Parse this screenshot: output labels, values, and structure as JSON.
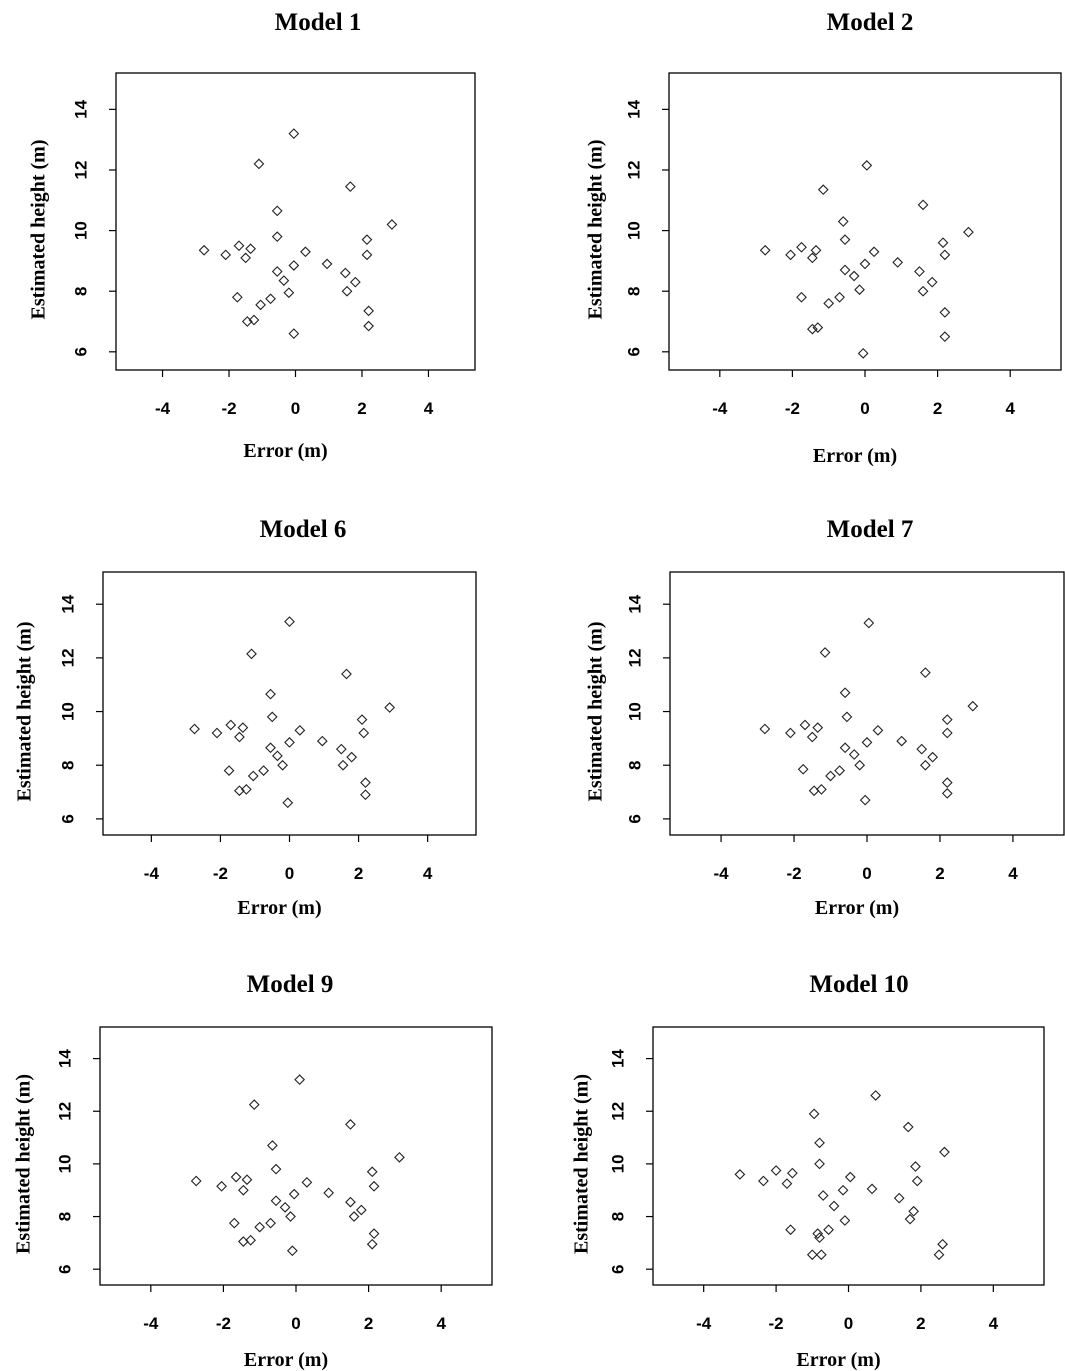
{
  "chart_data": [
    {
      "type": "scatter",
      "title": "Model 1",
      "xlabel": "Error (m)",
      "ylabel": "Estimated height (m)",
      "xlim": [
        -5.4,
        5.4
      ],
      "ylim": [
        5.4,
        15.2
      ],
      "xticks": [
        -4,
        -2,
        0,
        2,
        4
      ],
      "yticks": [
        6,
        8,
        10,
        12,
        14
      ],
      "grid": false,
      "marker": "diamond",
      "points": [
        [
          -0.05,
          13.2
        ],
        [
          -1.1,
          12.2
        ],
        [
          1.65,
          11.45
        ],
        [
          2.9,
          10.2
        ],
        [
          -0.55,
          10.65
        ],
        [
          -0.55,
          9.8
        ],
        [
          2.15,
          9.7
        ],
        [
          -2.75,
          9.35
        ],
        [
          -1.7,
          9.5
        ],
        [
          -1.35,
          9.4
        ],
        [
          -2.1,
          9.2
        ],
        [
          -1.5,
          9.1
        ],
        [
          0.3,
          9.3
        ],
        [
          2.15,
          9.2
        ],
        [
          -0.05,
          8.85
        ],
        [
          0.95,
          8.9
        ],
        [
          -0.55,
          8.65
        ],
        [
          -0.35,
          8.35
        ],
        [
          1.5,
          8.6
        ],
        [
          1.8,
          8.3
        ],
        [
          -0.2,
          7.95
        ],
        [
          1.55,
          8.0
        ],
        [
          -1.75,
          7.8
        ],
        [
          -0.75,
          7.75
        ],
        [
          -1.05,
          7.55
        ],
        [
          -1.45,
          7.0
        ],
        [
          -1.25,
          7.05
        ],
        [
          2.2,
          7.35
        ],
        [
          -0.05,
          6.6
        ],
        [
          2.2,
          6.85
        ]
      ]
    },
    {
      "type": "scatter",
      "title": "Model 2",
      "xlabel": "Error (m)",
      "ylabel": "Estimated height (m)",
      "xlim": [
        -5.4,
        5.4
      ],
      "ylim": [
        5.4,
        15.2
      ],
      "xticks": [
        -4,
        -2,
        0,
        2,
        4
      ],
      "yticks": [
        6,
        8,
        10,
        12,
        14
      ],
      "grid": false,
      "marker": "diamond",
      "points": [
        [
          0.05,
          12.15
        ],
        [
          -1.15,
          11.35
        ],
        [
          1.6,
          10.85
        ],
        [
          2.85,
          9.95
        ],
        [
          -0.6,
          10.3
        ],
        [
          -0.55,
          9.7
        ],
        [
          2.15,
          9.6
        ],
        [
          -2.75,
          9.35
        ],
        [
          -1.75,
          9.45
        ],
        [
          -1.35,
          9.35
        ],
        [
          -2.05,
          9.2
        ],
        [
          -1.45,
          9.1
        ],
        [
          0.25,
          9.3
        ],
        [
          2.2,
          9.2
        ],
        [
          0.0,
          8.9
        ],
        [
          0.9,
          8.95
        ],
        [
          -0.55,
          8.7
        ],
        [
          -0.3,
          8.5
        ],
        [
          1.5,
          8.65
        ],
        [
          1.85,
          8.3
        ],
        [
          -0.15,
          8.05
        ],
        [
          1.6,
          8.0
        ],
        [
          -1.75,
          7.8
        ],
        [
          -0.7,
          7.8
        ],
        [
          -1.0,
          7.6
        ],
        [
          -1.45,
          6.75
        ],
        [
          -1.3,
          6.8
        ],
        [
          2.2,
          7.3
        ],
        [
          2.2,
          6.5
        ],
        [
          -0.05,
          5.95
        ]
      ]
    },
    {
      "type": "scatter",
      "title": "Model 6",
      "xlabel": "Error (m)",
      "ylabel": "Estimated height (m)",
      "xlim": [
        -5.4,
        5.4
      ],
      "ylim": [
        5.4,
        15.2
      ],
      "xticks": [
        -4,
        -2,
        0,
        2,
        4
      ],
      "yticks": [
        6,
        8,
        10,
        12,
        14
      ],
      "grid": false,
      "marker": "diamond",
      "points": [
        [
          0.0,
          13.35
        ],
        [
          -1.1,
          12.15
        ],
        [
          1.65,
          11.4
        ],
        [
          2.9,
          10.15
        ],
        [
          -0.55,
          10.65
        ],
        [
          -0.5,
          9.8
        ],
        [
          2.1,
          9.7
        ],
        [
          -2.75,
          9.35
        ],
        [
          -1.7,
          9.5
        ],
        [
          -1.35,
          9.4
        ],
        [
          -2.1,
          9.2
        ],
        [
          -1.45,
          9.05
        ],
        [
          0.3,
          9.3
        ],
        [
          2.15,
          9.2
        ],
        [
          0.0,
          8.85
        ],
        [
          0.95,
          8.9
        ],
        [
          -0.55,
          8.65
        ],
        [
          -0.35,
          8.35
        ],
        [
          1.5,
          8.6
        ],
        [
          1.8,
          8.3
        ],
        [
          -0.2,
          8.0
        ],
        [
          1.55,
          8.0
        ],
        [
          -1.75,
          7.8
        ],
        [
          -0.75,
          7.8
        ],
        [
          -1.05,
          7.6
        ],
        [
          -1.45,
          7.05
        ],
        [
          -1.25,
          7.1
        ],
        [
          2.2,
          7.35
        ],
        [
          -0.05,
          6.6
        ],
        [
          2.2,
          6.9
        ]
      ]
    },
    {
      "type": "scatter",
      "title": "Model 7",
      "xlabel": "Error (m)",
      "ylabel": "Estimated height (m)",
      "xlim": [
        -5.4,
        5.4
      ],
      "ylim": [
        5.4,
        15.2
      ],
      "xticks": [
        -4,
        -2,
        0,
        2,
        4
      ],
      "yticks": [
        6,
        8,
        10,
        12,
        14
      ],
      "grid": false,
      "marker": "diamond",
      "points": [
        [
          0.05,
          13.3
        ],
        [
          -1.15,
          12.2
        ],
        [
          1.6,
          11.45
        ],
        [
          2.9,
          10.2
        ],
        [
          -0.6,
          10.7
        ],
        [
          -0.55,
          9.8
        ],
        [
          2.2,
          9.7
        ],
        [
          -2.8,
          9.35
        ],
        [
          -1.7,
          9.5
        ],
        [
          -1.35,
          9.4
        ],
        [
          -2.1,
          9.2
        ],
        [
          -1.5,
          9.05
        ],
        [
          0.3,
          9.3
        ],
        [
          2.2,
          9.2
        ],
        [
          0.0,
          8.85
        ],
        [
          0.95,
          8.9
        ],
        [
          -0.6,
          8.65
        ],
        [
          -0.35,
          8.4
        ],
        [
          1.5,
          8.6
        ],
        [
          1.8,
          8.3
        ],
        [
          -0.2,
          8.0
        ],
        [
          1.6,
          8.0
        ],
        [
          -1.75,
          7.85
        ],
        [
          -0.75,
          7.8
        ],
        [
          -1.0,
          7.6
        ],
        [
          -1.45,
          7.05
        ],
        [
          -1.25,
          7.1
        ],
        [
          2.2,
          7.35
        ],
        [
          -0.05,
          6.7
        ],
        [
          2.2,
          6.95
        ]
      ]
    },
    {
      "type": "scatter",
      "title": "Model 9",
      "xlabel": "Error (m)",
      "ylabel": "Estimated height (m)",
      "xlim": [
        -5.4,
        5.4
      ],
      "ylim": [
        5.4,
        15.2
      ],
      "xticks": [
        -4,
        -2,
        0,
        2,
        4
      ],
      "yticks": [
        6,
        8,
        10,
        12,
        14
      ],
      "grid": false,
      "marker": "diamond",
      "points": [
        [
          0.1,
          13.2
        ],
        [
          -1.15,
          12.25
        ],
        [
          1.5,
          11.5
        ],
        [
          2.85,
          10.25
        ],
        [
          -0.65,
          10.7
        ],
        [
          -0.55,
          9.8
        ],
        [
          2.1,
          9.7
        ],
        [
          -2.75,
          9.35
        ],
        [
          -1.65,
          9.5
        ],
        [
          -1.35,
          9.4
        ],
        [
          -2.05,
          9.15
        ],
        [
          -1.45,
          9.0
        ],
        [
          0.3,
          9.3
        ],
        [
          2.15,
          9.15
        ],
        [
          -0.05,
          8.85
        ],
        [
          0.9,
          8.9
        ],
        [
          -0.55,
          8.6
        ],
        [
          -0.3,
          8.35
        ],
        [
          1.5,
          8.55
        ],
        [
          1.8,
          8.25
        ],
        [
          -0.15,
          8.0
        ],
        [
          1.6,
          8.0
        ],
        [
          -1.7,
          7.75
        ],
        [
          -0.7,
          7.75
        ],
        [
          -1.0,
          7.6
        ],
        [
          -1.45,
          7.05
        ],
        [
          -1.25,
          7.1
        ],
        [
          2.15,
          7.35
        ],
        [
          -0.1,
          6.7
        ],
        [
          2.1,
          6.95
        ]
      ]
    },
    {
      "type": "scatter",
      "title": "Model 10",
      "xlabel": "Error (m)",
      "ylabel": "Estimated height (m)",
      "xlim": [
        -5.4,
        5.4
      ],
      "ylim": [
        5.4,
        15.2
      ],
      "xticks": [
        -4,
        -2,
        0,
        2,
        4
      ],
      "yticks": [
        6,
        8,
        10,
        12,
        14
      ],
      "grid": false,
      "marker": "diamond",
      "points": [
        [
          0.75,
          12.6
        ],
        [
          -0.95,
          11.9
        ],
        [
          1.65,
          11.4
        ],
        [
          -0.8,
          10.8
        ],
        [
          2.65,
          10.45
        ],
        [
          -0.8,
          10.0
        ],
        [
          1.85,
          9.9
        ],
        [
          -3.0,
          9.6
        ],
        [
          -2.0,
          9.75
        ],
        [
          -1.55,
          9.65
        ],
        [
          -2.35,
          9.35
        ],
        [
          -1.7,
          9.25
        ],
        [
          0.05,
          9.5
        ],
        [
          1.9,
          9.35
        ],
        [
          -0.15,
          9.0
        ],
        [
          0.65,
          9.05
        ],
        [
          -0.7,
          8.8
        ],
        [
          -0.4,
          8.4
        ],
        [
          1.4,
          8.7
        ],
        [
          1.8,
          8.2
        ],
        [
          -0.1,
          7.85
        ],
        [
          1.7,
          7.9
        ],
        [
          -1.6,
          7.5
        ],
        [
          -0.55,
          7.5
        ],
        [
          -0.85,
          7.35
        ],
        [
          -0.8,
          7.2
        ],
        [
          2.6,
          6.95
        ],
        [
          2.5,
          6.55
        ],
        [
          -1.0,
          6.55
        ],
        [
          -0.75,
          6.55
        ]
      ]
    }
  ]
}
